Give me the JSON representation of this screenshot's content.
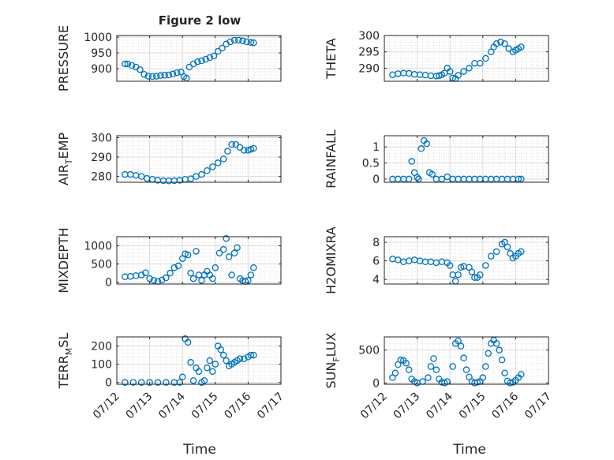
{
  "figure": {
    "title": "Figure 2 low",
    "xlabel": "Time"
  },
  "colors": {
    "marker": "#0072BD",
    "axis": "#262626",
    "grid": "#dcdcdc"
  },
  "chart_data": [
    {
      "type": "scatter",
      "ylabel": "PRESSURE",
      "ylabel_sub": "",
      "ylabel_suffix": "",
      "ylim": [
        860,
        1005
      ],
      "yticks": [
        "900",
        "950",
        "1000"
      ],
      "ytick_values": [
        900,
        950,
        1000
      ],
      "xlim": [
        "07/12",
        "07/17"
      ],
      "grid": true,
      "x": [
        "07/12 06:00",
        "07/12 08:00",
        "07/12 11:00",
        "07/12 14:00",
        "07/12 17:00",
        "07/12 20:00",
        "07/12 23:00",
        "07/13 02:00",
        "07/13 05:00",
        "07/13 08:00",
        "07/13 11:00",
        "07/13 14:00",
        "07/13 17:00",
        "07/13 20:00",
        "07/13 23:00",
        "07/14 01:00",
        "07/14 03:00",
        "07/14 05:00",
        "07/14 08:00",
        "07/14 11:00",
        "07/14 14:00",
        "07/14 17:00",
        "07/14 20:00",
        "07/14 23:00",
        "07/15 02:00",
        "07/15 05:00",
        "07/15 08:00",
        "07/15 11:00",
        "07/15 14:00",
        "07/15 17:00",
        "07/15 20:00",
        "07/15 23:00",
        "07/16 02:00",
        "07/16 04:00"
      ],
      "y": [
        915,
        915,
        910,
        905,
        897,
        882,
        876,
        875,
        876,
        878,
        879,
        880,
        883,
        887,
        889,
        875,
        870,
        905,
        915,
        922,
        925,
        930,
        935,
        940,
        955,
        965,
        978,
        985,
        990,
        990,
        988,
        985,
        983,
        982
      ]
    },
    {
      "type": "scatter",
      "ylabel": "THETA",
      "ylabel_sub": "",
      "ylabel_suffix": "",
      "ylim": [
        286,
        300
      ],
      "yticks": [
        "290",
        "295",
        "300"
      ],
      "ytick_values": [
        290,
        295,
        300
      ],
      "xlim": [
        "07/12",
        "07/17"
      ],
      "grid": true,
      "x": [
        "07/12 06:00",
        "07/12 10:00",
        "07/12 14:00",
        "07/12 18:00",
        "07/12 22:00",
        "07/13 02:00",
        "07/13 06:00",
        "07/13 10:00",
        "07/13 14:00",
        "07/13 16:00",
        "07/13 18:00",
        "07/13 20:00",
        "07/13 22:00",
        "07/14 00:00",
        "07/14 02:00",
        "07/14 04:00",
        "07/14 06:00",
        "07/14 10:00",
        "07/14 14:00",
        "07/14 18:00",
        "07/14 22:00",
        "07/15 02:00",
        "07/15 06:00",
        "07/15 08:00",
        "07/15 10:00",
        "07/15 13:00",
        "07/15 16:00",
        "07/15 19:00",
        "07/15 22:00",
        "07/16 00:00",
        "07/16 02:00",
        "07/16 04:00"
      ],
      "y": [
        288,
        288.3,
        288.5,
        288.4,
        288.1,
        288,
        287.9,
        287.7,
        287.6,
        287.7,
        288,
        288.5,
        290,
        289,
        287,
        286.8,
        287.8,
        289,
        290,
        291.5,
        291.5,
        293,
        295,
        296.5,
        297.5,
        298,
        297.5,
        296,
        295,
        295.5,
        296,
        296.5
      ]
    },
    {
      "type": "scatter",
      "ylabel": "AIR",
      "ylabel_sub": "T",
      "ylabel_suffix": "EMP",
      "ylim": [
        277,
        301
      ],
      "yticks": [
        "280",
        "290",
        "300"
      ],
      "ytick_values": [
        280,
        290,
        300
      ],
      "xlim": [
        "07/12",
        "07/17"
      ],
      "grid": true,
      "x": [
        "07/12 06:00",
        "07/12 10:00",
        "07/12 14:00",
        "07/12 18:00",
        "07/12 22:00",
        "07/13 02:00",
        "07/13 06:00",
        "07/13 10:00",
        "07/13 14:00",
        "07/13 18:00",
        "07/13 22:00",
        "07/14 02:00",
        "07/14 06:00",
        "07/14 10:00",
        "07/14 14:00",
        "07/14 18:00",
        "07/14 22:00",
        "07/15 02:00",
        "07/15 06:00",
        "07/15 09:00",
        "07/15 12:00",
        "07/15 15:00",
        "07/15 18:00",
        "07/15 21:00",
        "07/16 00:00",
        "07/16 02:00",
        "07/16 04:00"
      ],
      "y": [
        281,
        281,
        280.5,
        280,
        279,
        278.5,
        278,
        277.8,
        277.7,
        277.8,
        278,
        278.5,
        278.8,
        280,
        281,
        283,
        285,
        287,
        289,
        293,
        296.5,
        296.5,
        295,
        293.5,
        293.5,
        294,
        294.5
      ]
    },
    {
      "type": "scatter",
      "ylabel": "RAINFALL",
      "ylabel_sub": "",
      "ylabel_suffix": "",
      "ylim": [
        -0.1,
        1.35
      ],
      "yticks": [
        "0",
        "0.5",
        "1"
      ],
      "ytick_values": [
        0,
        0.5,
        1
      ],
      "xlim": [
        "07/12",
        "07/17"
      ],
      "grid": true,
      "x": [
        "07/12 06:00",
        "07/12 10:00",
        "07/12 14:00",
        "07/12 18:00",
        "07/12 20:00",
        "07/12 22:00",
        "07/13 00:00",
        "07/13 01:00",
        "07/13 03:00",
        "07/13 05:00",
        "07/13 07:00",
        "07/13 09:00",
        "07/13 11:00",
        "07/13 14:00",
        "07/13 18:00",
        "07/13 22:00",
        "07/14 02:00",
        "07/14 06:00",
        "07/14 10:00",
        "07/14 14:00",
        "07/14 18:00",
        "07/14 22:00",
        "07/15 02:00",
        "07/15 06:00",
        "07/15 10:00",
        "07/15 14:00",
        "07/15 18:00",
        "07/15 22:00",
        "07/16 02:00",
        "07/16 04:00"
      ],
      "y": [
        0,
        0,
        0,
        0,
        0.55,
        0.2,
        0.05,
        0,
        0.95,
        1.2,
        1.1,
        0.2,
        0.15,
        0,
        0,
        0.07,
        0,
        0,
        0,
        0,
        0,
        0,
        0,
        0,
        0,
        0,
        0,
        0,
        0,
        0
      ]
    },
    {
      "type": "scatter",
      "ylabel": "MIXDEPTH",
      "ylabel_sub": "",
      "ylabel_suffix": "",
      "ylim": [
        -50,
        1250
      ],
      "yticks": [
        "0",
        "500",
        "1000"
      ],
      "ytick_values": [
        0,
        500,
        1000
      ],
      "xlim": [
        "07/12",
        "07/17"
      ],
      "grid": true,
      "x": [
        "07/12 06:00",
        "07/12 10:00",
        "07/12 14:00",
        "07/12 18:00",
        "07/12 21:00",
        "07/13 00:00",
        "07/13 03:00",
        "07/13 06:00",
        "07/13 09:00",
        "07/13 12:00",
        "07/13 15:00",
        "07/13 18:00",
        "07/13 21:00",
        "07/14 00:00",
        "07/14 02:00",
        "07/14 04:00",
        "07/14 06:00",
        "07/14 08:00",
        "07/14 10:00",
        "07/14 12:00",
        "07/14 14:00",
        "07/14 16:00",
        "07/14 18:00",
        "07/14 20:00",
        "07/14 22:00",
        "07/15 00:00",
        "07/15 03:00",
        "07/15 06:00",
        "07/15 08:00",
        "07/15 10:00",
        "07/15 12:00",
        "07/15 14:00",
        "07/15 16:00",
        "07/15 18:00",
        "07/15 20:00",
        "07/15 22:00",
        "07/16 00:00",
        "07/16 02:00",
        "07/16 04:00"
      ],
      "y": [
        150,
        160,
        180,
        200,
        260,
        100,
        50,
        20,
        60,
        120,
        250,
        400,
        450,
        650,
        780,
        750,
        250,
        100,
        850,
        200,
        50,
        200,
        300,
        200,
        100,
        400,
        800,
        900,
        1200,
        700,
        200,
        800,
        950,
        100,
        40,
        20,
        50,
        200,
        400
      ]
    },
    {
      "type": "scatter",
      "ylabel": "H2OMIXRA",
      "ylabel_sub": "",
      "ylabel_suffix": "",
      "ylim": [
        3.5,
        8.6
      ],
      "yticks": [
        "4",
        "6",
        "8"
      ],
      "ytick_values": [
        4,
        6,
        8
      ],
      "xlim": [
        "07/12",
        "07/17"
      ],
      "grid": true,
      "x": [
        "07/12 06:00",
        "07/12 10:00",
        "07/12 14:00",
        "07/12 18:00",
        "07/12 22:00",
        "07/13 02:00",
        "07/13 06:00",
        "07/13 10:00",
        "07/13 14:00",
        "07/13 18:00",
        "07/13 22:00",
        "07/14 00:00",
        "07/14 02:00",
        "07/14 04:00",
        "07/14 06:00",
        "07/14 08:00",
        "07/14 10:00",
        "07/14 14:00",
        "07/14 16:00",
        "07/14 18:00",
        "07/14 20:00",
        "07/14 22:00",
        "07/15 02:00",
        "07/15 06:00",
        "07/15 10:00",
        "07/15 14:00",
        "07/15 16:00",
        "07/15 18:00",
        "07/15 20:00",
        "07/15 22:00",
        "07/16 00:00",
        "07/16 02:00",
        "07/16 04:00"
      ],
      "y": [
        6.2,
        6.1,
        5.9,
        6.0,
        6.1,
        6.0,
        5.9,
        5.9,
        5.8,
        5.9,
        5.8,
        5.5,
        4.5,
        3.8,
        4.5,
        5.3,
        5.4,
        5.3,
        4.8,
        4.2,
        4.2,
        4.5,
        5.5,
        6.5,
        7.0,
        7.8,
        8.0,
        7.5,
        6.8,
        6.3,
        6.5,
        6.8,
        7.0
      ]
    },
    {
      "type": "scatter",
      "ylabel": "TERR",
      "ylabel_sub": "M",
      "ylabel_suffix": "SL",
      "ylim": [
        -10,
        250
      ],
      "yticks": [
        "0",
        "100",
        "200"
      ],
      "ytick_values": [
        0,
        100,
        200
      ],
      "xlim": [
        "07/12",
        "07/17"
      ],
      "grid": true,
      "x": [
        "07/12 06:00",
        "07/12 12:00",
        "07/12 18:00",
        "07/13 00:00",
        "07/13 06:00",
        "07/13 12:00",
        "07/13 18:00",
        "07/13 22:00",
        "07/14 00:00",
        "07/14 02:00",
        "07/14 04:00",
        "07/14 06:00",
        "07/14 08:00",
        "07/14 10:00",
        "07/14 12:00",
        "07/14 14:00",
        "07/14 16:00",
        "07/14 18:00",
        "07/14 20:00",
        "07/14 22:00",
        "07/15 00:00",
        "07/15 02:00",
        "07/15 04:00",
        "07/15 06:00",
        "07/15 08:00",
        "07/15 10:00",
        "07/15 12:00",
        "07/15 14:00",
        "07/15 16:00",
        "07/15 18:00",
        "07/15 21:00",
        "07/16 00:00",
        "07/16 02:00",
        "07/16 04:00"
      ],
      "y": [
        0,
        0,
        0,
        0,
        0,
        0,
        0,
        0,
        30,
        240,
        220,
        110,
        10,
        80,
        60,
        0,
        10,
        80,
        120,
        60,
        100,
        200,
        180,
        150,
        120,
        90,
        100,
        110,
        120,
        130,
        130,
        140,
        150,
        150
      ]
    },
    {
      "type": "scatter",
      "ylabel": "SUN",
      "ylabel_sub": "F",
      "ylabel_suffix": "LUX",
      "ylim": [
        -20,
        700
      ],
      "yticks": [
        "0",
        "500"
      ],
      "ytick_values": [
        0,
        500
      ],
      "xlim": [
        "07/12",
        "07/17"
      ],
      "grid": true,
      "x": [
        "07/12 06:00",
        "07/12 08:00",
        "07/12 10:00",
        "07/12 12:00",
        "07/12 14:00",
        "07/12 16:00",
        "07/12 18:00",
        "07/12 20:00",
        "07/12 22:00",
        "07/13 00:00",
        "07/13 04:00",
        "07/13 08:00",
        "07/13 10:00",
        "07/13 12:00",
        "07/13 14:00",
        "07/13 16:00",
        "07/13 18:00",
        "07/13 20:00",
        "07/13 22:00",
        "07/14 02:00",
        "07/14 04:00",
        "07/14 06:00",
        "07/14 08:00",
        "07/14 10:00",
        "07/14 12:00",
        "07/14 14:00",
        "07/14 16:00",
        "07/14 18:00",
        "07/14 20:00",
        "07/14 22:00",
        "07/15 00:00",
        "07/15 02:00",
        "07/15 04:00",
        "07/15 06:00",
        "07/15 08:00",
        "07/15 10:00",
        "07/15 12:00",
        "07/15 14:00",
        "07/15 16:00",
        "07/15 18:00",
        "07/15 20:00",
        "07/15 22:00",
        "07/16 00:00",
        "07/16 02:00",
        "07/16 04:00"
      ],
      "y": [
        80,
        150,
        280,
        350,
        340,
        300,
        200,
        60,
        20,
        0,
        20,
        80,
        250,
        370,
        200,
        60,
        10,
        0,
        20,
        250,
        600,
        640,
        560,
        380,
        200,
        90,
        20,
        0,
        10,
        20,
        80,
        250,
        450,
        600,
        650,
        600,
        500,
        350,
        150,
        30,
        0,
        10,
        40,
        80,
        130
      ]
    }
  ]
}
